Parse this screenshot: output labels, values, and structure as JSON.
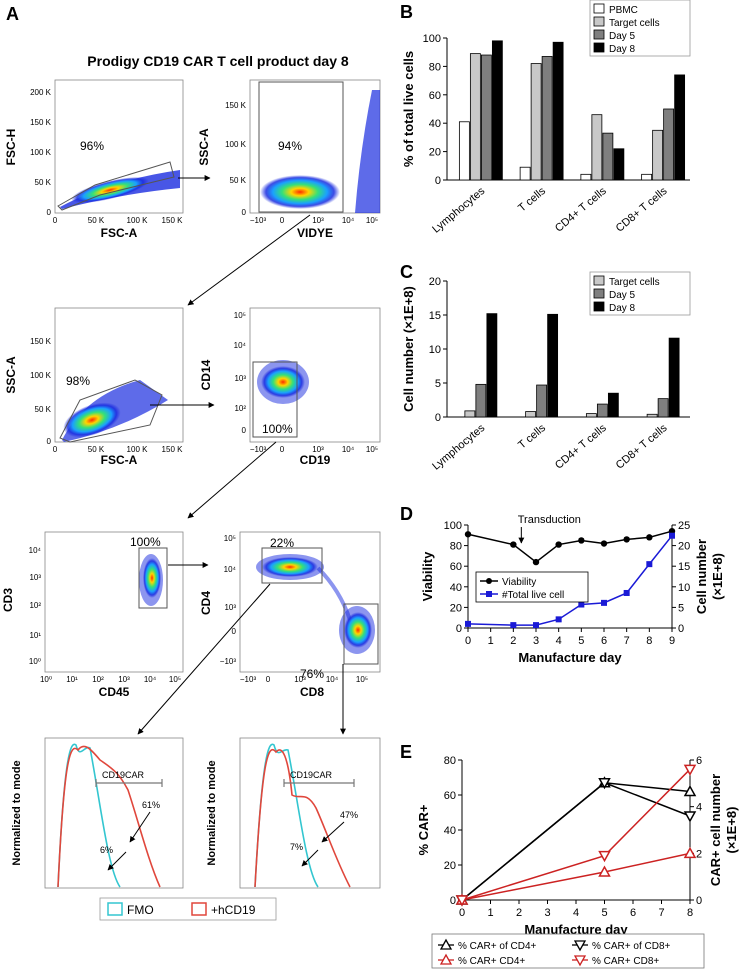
{
  "panel_labels": {
    "a": "A",
    "b": "B",
    "c": "C",
    "d": "D",
    "e": "E"
  },
  "panel_a": {
    "title": "Prodigy CD19 CAR T cell product day 8",
    "plot1": {
      "xlabel": "FSC-A",
      "ylabel": "FSC-H",
      "gate_pct": "96%",
      "xticks": [
        "0",
        "50 K",
        "100 K",
        "150 K"
      ],
      "yticks": [
        "0",
        "50 K",
        "100 K",
        "150 K",
        "200 K"
      ]
    },
    "plot2": {
      "xlabel": "VIDYE",
      "ylabel": "SSC-A",
      "gate_pct": "94%",
      "xticks": [
        "−10³",
        "0",
        "10³",
        "10⁴",
        "10⁵"
      ],
      "yticks": [
        "0",
        "50 K",
        "100 K",
        "150 K"
      ]
    },
    "plot3": {
      "xlabel": "FSC-A",
      "ylabel": "SSC-A",
      "gate_pct": "98%",
      "xticks": [
        "0",
        "50 K",
        "100 K",
        "150 K"
      ],
      "yticks": [
        "0",
        "50 K",
        "100 K",
        "150 K"
      ]
    },
    "plot4": {
      "xlabel": "CD19",
      "ylabel": "CD14",
      "gate_pct": "100%",
      "xticks": [
        "−10³",
        "0",
        "10³",
        "10⁴",
        "10⁵"
      ],
      "yticks": [
        "0",
        "10²",
        "10³",
        "10⁴",
        "10⁵"
      ]
    },
    "plot5": {
      "xlabel": "CD45",
      "ylabel": "CD3",
      "gate_pct": "100%",
      "xticks": [
        "10⁰",
        "10¹",
        "10²",
        "10³",
        "10⁴",
        "10⁵"
      ],
      "yticks": [
        "10⁰",
        "10¹",
        "10²",
        "10³",
        "10⁴"
      ]
    },
    "plot6": {
      "xlabel": "CD8",
      "ylabel": "CD4",
      "gate_pct_top": "22%",
      "gate_pct_bottom": "76%",
      "xticks": [
        "−10³",
        "0",
        "10³",
        "10⁴",
        "10⁵"
      ],
      "yticks": [
        "−10³",
        "0",
        "10³",
        "10⁴",
        "10⁵"
      ]
    },
    "hist1": {
      "ylabel": "Normalized to mode",
      "gate_label": "CD19CAR",
      "pct_high": "61%",
      "pct_low": "6%"
    },
    "hist2": {
      "ylabel": "Normalized to mode",
      "gate_label": "CD19CAR",
      "pct_high": "47%",
      "pct_low": "7%"
    },
    "legend": {
      "fmo": "FMO",
      "hcd19": "+hCD19"
    },
    "colors": {
      "fmo": "#33c6d0",
      "hcd19": "#e0473c",
      "density": "#1a2ce0"
    }
  },
  "chart_data": [
    {
      "id": "B",
      "type": "bar",
      "ylabel": "% of total live cells",
      "ylim": [
        0,
        100
      ],
      "yticks": [
        "0",
        "20",
        "40",
        "60",
        "80",
        "100"
      ],
      "categories": [
        "Lymphocytes",
        "T cells",
        "CD4+ T cells",
        "CD8+ T cells"
      ],
      "series": [
        {
          "name": "PBMC",
          "color": "#ffffff",
          "values": [
            41,
            9,
            4,
            4
          ]
        },
        {
          "name": "Target cells",
          "color": "#c8c8c8",
          "values": [
            89,
            82,
            46,
            35
          ]
        },
        {
          "name": "Day 5",
          "color": "#7f7f7f",
          "values": [
            88,
            87,
            33,
            50
          ]
        },
        {
          "name": "Day 8",
          "color": "#000000",
          "values": [
            98,
            97,
            22,
            74
          ]
        }
      ]
    },
    {
      "id": "C",
      "type": "bar",
      "ylabel": "Cell number (×1E+8)",
      "ylim": [
        0,
        20
      ],
      "yticks": [
        "0",
        "5",
        "10",
        "15",
        "20"
      ],
      "categories": [
        "Lymphocytes",
        "T cells",
        "CD4+ T cells",
        "CD8+ T cells"
      ],
      "series": [
        {
          "name": "Target cells",
          "color": "#c8c8c8",
          "values": [
            0.9,
            0.8,
            0.5,
            0.4
          ]
        },
        {
          "name": "Day 5",
          "color": "#7f7f7f",
          "values": [
            4.8,
            4.7,
            1.9,
            2.7
          ]
        },
        {
          "name": "Day 8",
          "color": "#000000",
          "values": [
            15.2,
            15.1,
            3.5,
            11.6
          ]
        }
      ]
    },
    {
      "id": "D",
      "type": "line",
      "xlabel": "Manufacture day",
      "ylabel": "Viability",
      "y2label_1": "Cell number",
      "y2label_2": "(×1E+8)",
      "annotation": "Transduction",
      "x": [
        0,
        1,
        2,
        3,
        4,
        5,
        6,
        7,
        8,
        9
      ],
      "xticks": [
        "0",
        "1",
        "2",
        "3",
        "4",
        "5",
        "6",
        "7",
        "8",
        "9"
      ],
      "yticks": [
        "0",
        "20",
        "40",
        "60",
        "80",
        "100"
      ],
      "y2ticks": [
        "0",
        "5",
        "10",
        "15",
        "20",
        "25"
      ],
      "ylim": [
        0,
        100
      ],
      "y2lim": [
        0,
        25
      ],
      "series": [
        {
          "name": "Viability",
          "axis": "left",
          "color": "#000000",
          "marker": "circle",
          "values": [
            91,
            null,
            81,
            64,
            81,
            85,
            82,
            86,
            88,
            94
          ]
        },
        {
          "name": "#Total live cell",
          "axis": "right",
          "color": "#1a1ad6",
          "marker": "square",
          "values": [
            1,
            null,
            0.7,
            0.7,
            2.1,
            5.7,
            6.1,
            8.5,
            15.5,
            22.4
          ]
        }
      ]
    },
    {
      "id": "E",
      "type": "line",
      "xlabel": "Manufacture day",
      "ylabel": "% CAR+",
      "y2label_1": "CAR+ cell number",
      "y2label_2": "(×1E+8)",
      "xticks": [
        "0",
        "1",
        "2",
        "3",
        "4",
        "5",
        "6",
        "7",
        "8"
      ],
      "yticks": [
        "0",
        "20",
        "40",
        "60",
        "80"
      ],
      "y2ticks": [
        "0",
        "2",
        "4",
        "6"
      ],
      "ylim": [
        0,
        80
      ],
      "y2lim": [
        0,
        6
      ],
      "series": [
        {
          "name": "% CAR+ of CD4+",
          "axis": "left",
          "color": "#000000",
          "marker": "up",
          "x": [
            0,
            5,
            8
          ],
          "values": [
            0,
            67,
            62
          ]
        },
        {
          "name": "% CAR+ of CD8+",
          "axis": "left",
          "color": "#000000",
          "marker": "down",
          "x": [
            0,
            5,
            8
          ],
          "values": [
            0,
            67,
            48
          ]
        },
        {
          "name": "% CAR+ CD4+",
          "axis": "right",
          "color": "#cc2222",
          "marker": "up",
          "x": [
            0,
            5,
            8
          ],
          "values": [
            0,
            1.2,
            2.0
          ]
        },
        {
          "name": "% CAR+ CD8+",
          "axis": "right",
          "color": "#cc2222",
          "marker": "down",
          "x": [
            0,
            5,
            8
          ],
          "values": [
            0,
            1.9,
            5.6
          ]
        }
      ]
    }
  ]
}
